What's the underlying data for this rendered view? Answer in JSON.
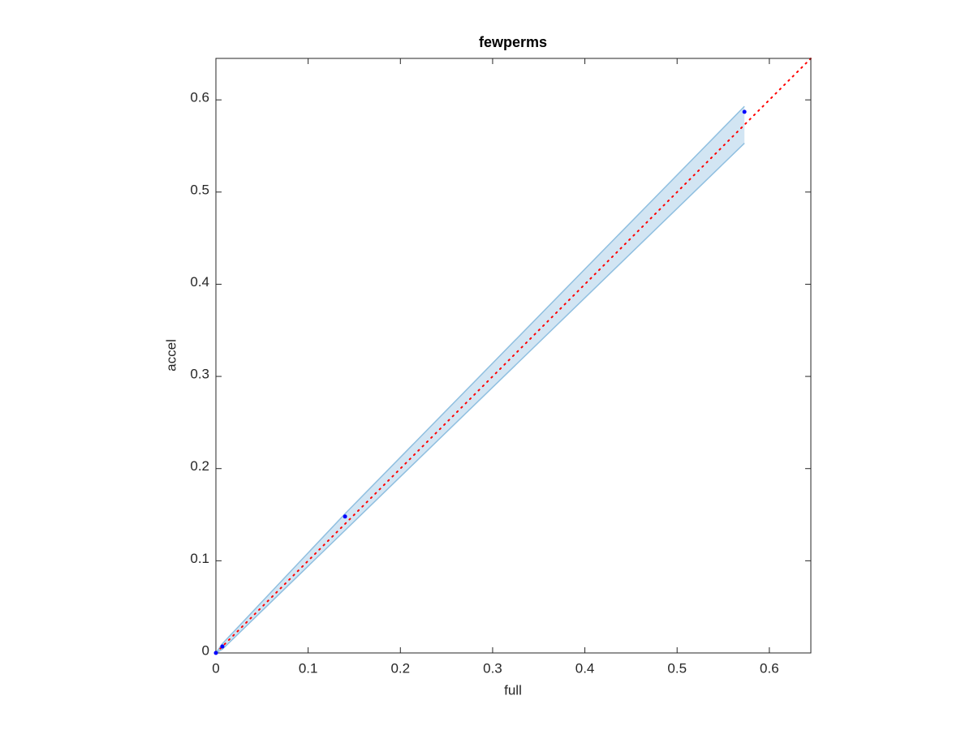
{
  "chart_data": {
    "type": "scatter",
    "title": "fewperms",
    "x_label": "full",
    "y_label": "accel",
    "xlim": [
      0,
      0.645
    ],
    "ylim": [
      0,
      0.645
    ],
    "xticks": [
      0,
      0.1,
      0.2,
      0.3,
      0.4,
      0.5,
      0.6
    ],
    "yticks": [
      0,
      0.1,
      0.2,
      0.3,
      0.4,
      0.5,
      0.6
    ],
    "x": [
      0,
      0.007,
      0.14,
      0.573
    ],
    "values": [
      0,
      0.007,
      0.148,
      0.587
    ],
    "color": "#0000ff",
    "band": {
      "x": [
        0,
        0.007,
        0.14,
        0.573
      ],
      "lower": [
        0,
        0.004,
        0.133,
        0.553
      ],
      "upper": [
        0,
        0.01,
        0.151,
        0.593
      ],
      "color": "#8fbfe0"
    },
    "reference_line_color": "#ff0000"
  }
}
